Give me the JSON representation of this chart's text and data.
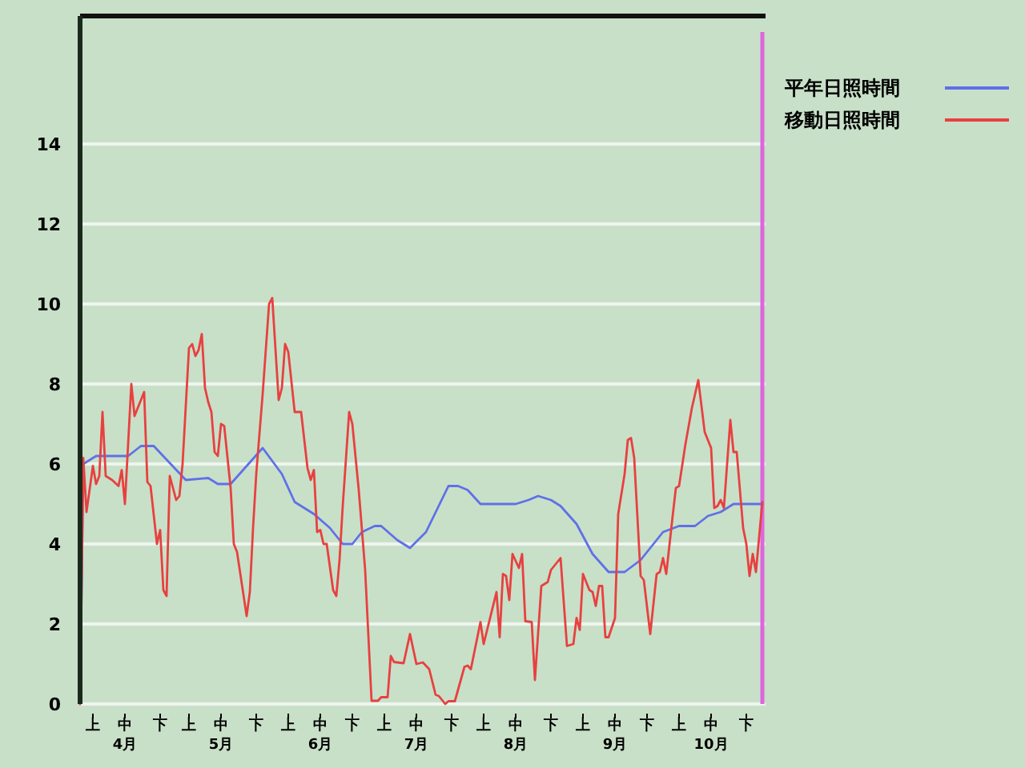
{
  "chart_data": {
    "type": "line",
    "xlim": [
      "--04-01",
      "--11-01"
    ],
    "ylim": [
      0,
      17.2
    ],
    "xticks": [
      {
        "value": "--04-05",
        "label": "上"
      },
      {
        "value": "--04-15",
        "label": "中\n4月"
      },
      {
        "value": "--04-26",
        "label": "下"
      },
      {
        "value": "--05-05",
        "label": "上"
      },
      {
        "value": "--05-15",
        "label": "中\n5月"
      },
      {
        "value": "--05-26",
        "label": "下"
      },
      {
        "value": "--06-05",
        "label": "上"
      },
      {
        "value": "--06-15",
        "label": "中\n6月"
      },
      {
        "value": "--06-25",
        "label": "下"
      },
      {
        "value": "--07-05",
        "label": "上"
      },
      {
        "value": "--07-15",
        "label": "中\n7月"
      },
      {
        "value": "--07-26",
        "label": "下"
      },
      {
        "value": "--08-05",
        "label": "上"
      },
      {
        "value": "--08-15",
        "label": "中\n8月"
      },
      {
        "value": "--08-26",
        "label": "下"
      },
      {
        "value": "--09-05",
        "label": "上"
      },
      {
        "value": "--09-15",
        "label": "中\n9月"
      },
      {
        "value": "--09-25",
        "label": "下"
      },
      {
        "value": "--10-05",
        "label": "上"
      },
      {
        "value": "--10-15",
        "label": "中\n10月"
      },
      {
        "value": "--10-26",
        "label": "下"
      }
    ],
    "yticks": [
      0,
      2,
      4,
      6,
      8,
      10,
      12,
      14
    ],
    "grid": "y",
    "legend": "right",
    "ref_lines": [
      {
        "axis": "x",
        "value": "--10-31",
        "label": null,
        "color": "#dd66dd"
      }
    ],
    "series": [
      {
        "name": "平年日照時間",
        "color": "#6070e8",
        "x": [
          "--04-01",
          "--04-02",
          "--04-06",
          "--04-16",
          "--04-20",
          "--04-24",
          "--05-04",
          "--05-11",
          "--05-14",
          "--05-18",
          "--05-28",
          "--06-03",
          "--06-07",
          "--06-13",
          "--06-18",
          "--06-22",
          "--06-25",
          "--06-28",
          "--07-02",
          "--07-04",
          "--07-09",
          "--07-13",
          "--07-18",
          "--07-25",
          "--07-28",
          "--07-31",
          "--08-04",
          "--08-15",
          "--08-19",
          "--08-22",
          "--08-26",
          "--08-29",
          "--09-03",
          "--09-08",
          "--09-13",
          "--09-18",
          "--09-23",
          "--09-30",
          "--10-05",
          "--10-10",
          "--10-14",
          "--10-18",
          "--10-22",
          "--10-31"
        ],
        "values": [
          0,
          6.0,
          6.2,
          6.2,
          6.45,
          6.45,
          5.6,
          5.65,
          5.5,
          5.5,
          6.4,
          5.75,
          5.05,
          4.75,
          4.4,
          4.0,
          4.0,
          4.3,
          4.45,
          4.45,
          4.1,
          3.9,
          4.3,
          5.45,
          5.45,
          5.35,
          5.0,
          5.0,
          5.1,
          5.2,
          5.1,
          4.95,
          4.5,
          3.75,
          3.3,
          3.3,
          3.6,
          4.3,
          4.45,
          4.45,
          4.7,
          4.8,
          5.0,
          5.0
        ]
      },
      {
        "name": "移動日照時間",
        "color": "#e84040",
        "x": [
          "--04-01",
          "--04-02",
          "--04-03",
          "--04-05",
          "--04-06",
          "--04-07",
          "--04-08",
          "--04-09",
          "--04-11",
          "--04-13",
          "--04-14",
          "--04-15",
          "--04-17",
          "--04-18",
          "--04-21",
          "--04-22",
          "--04-23",
          "--04-25",
          "--04-26",
          "--04-27",
          "--04-28",
          "--04-29",
          "--05-01",
          "--05-02",
          "--05-03",
          "--05-05",
          "--05-06",
          "--05-07",
          "--05-08",
          "--05-09",
          "--05-10",
          "--05-11",
          "--05-12",
          "--05-13",
          "--05-14",
          "--05-15",
          "--05-16",
          "--05-18",
          "--05-19",
          "--05-20",
          "--05-23",
          "--05-24",
          "--05-25",
          "--05-26",
          "--05-28",
          "--05-30",
          "--05-31",
          "--06-02",
          "--06-03",
          "--06-04",
          "--06-05",
          "--06-07",
          "--06-09",
          "--06-11",
          "--06-12",
          "--06-13",
          "--06-14",
          "--06-15",
          "--06-16",
          "--06-17",
          "--06-19",
          "--06-20",
          "--06-21",
          "--06-22",
          "--06-24",
          "--06-25",
          "--06-27",
          "--06-29",
          "--07-01",
          "--07-03",
          "--07-04",
          "--07-06",
          "--07-07",
          "--07-08",
          "--07-11",
          "--07-13",
          "--07-15",
          "--07-17",
          "--07-19",
          "--07-21",
          "--07-22",
          "--07-24",
          "--07-25",
          "--07-27",
          "--07-30",
          "--07-31",
          "--08-01",
          "--08-04",
          "--08-05",
          "--08-09",
          "--08-10",
          "--08-11",
          "--08-12",
          "--08-13",
          "--08-14",
          "--08-16",
          "--08-17",
          "--08-18",
          "--08-20",
          "--08-21",
          "--08-23",
          "--08-25",
          "--08-26",
          "--08-29",
          "--08-31",
          "--09-02",
          "--09-03",
          "--09-04",
          "--09-05",
          "--09-07",
          "--09-08",
          "--09-09",
          "--09-10",
          "--09-11",
          "--09-12",
          "--09-13",
          "--09-15",
          "--09-16",
          "--09-18",
          "--09-19",
          "--09-20",
          "--09-21",
          "--09-23",
          "--09-24",
          "--09-26",
          "--09-28",
          "--09-29",
          "--09-30",
          "--10-01",
          "--10-03",
          "--10-04",
          "--10-05",
          "--10-07",
          "--10-09",
          "--10-11",
          "--10-13",
          "--10-15",
          "--10-16",
          "--10-17",
          "--10-18",
          "--10-19",
          "--10-21",
          "--10-22",
          "--10-23",
          "--10-25",
          "--10-26",
          "--10-27",
          "--10-28",
          "--10-29",
          "--10-31"
        ],
        "values": [
          0,
          6.15,
          4.8,
          5.95,
          5.5,
          5.7,
          7.3,
          5.7,
          5.6,
          5.45,
          5.85,
          5.0,
          8.0,
          7.2,
          7.8,
          5.55,
          5.45,
          4.0,
          4.35,
          2.85,
          2.7,
          5.7,
          5.1,
          5.2,
          6.0,
          8.9,
          9.0,
          8.7,
          8.85,
          9.25,
          7.9,
          7.55,
          7.3,
          6.3,
          6.2,
          7.0,
          6.95,
          5.4,
          4.0,
          3.8,
          2.2,
          2.8,
          4.4,
          5.75,
          7.75,
          10.0,
          10.15,
          7.6,
          7.9,
          9.0,
          8.8,
          7.3,
          7.3,
          5.9,
          5.6,
          5.85,
          4.3,
          4.35,
          4.0,
          4.0,
          2.85,
          2.7,
          3.6,
          4.95,
          7.3,
          7.0,
          5.35,
          3.35,
          0.08,
          0.08,
          0.17,
          0.17,
          1.2,
          1.05,
          1.02,
          1.75,
          1.0,
          1.04,
          0.87,
          0.23,
          0.2,
          0.0,
          0.07,
          0.07,
          0.93,
          0.96,
          0.87,
          2.05,
          1.5,
          2.8,
          1.67,
          3.25,
          3.2,
          2.6,
          3.75,
          3.4,
          3.75,
          2.07,
          2.05,
          0.6,
          2.95,
          3.05,
          3.35,
          3.65,
          1.45,
          1.5,
          2.15,
          1.85,
          3.25,
          2.85,
          2.8,
          2.45,
          2.95,
          2.95,
          1.67,
          1.67,
          2.15,
          4.75,
          5.75,
          6.6,
          6.65,
          6.15,
          3.2,
          3.1,
          1.75,
          3.25,
          3.3,
          3.65,
          3.25,
          4.7,
          5.4,
          5.45,
          6.5,
          7.4,
          8.1,
          6.8,
          6.4,
          4.9,
          4.95,
          5.1,
          4.9,
          7.1,
          6.3,
          6.3,
          4.4,
          4.0,
          3.2,
          3.75,
          3.3,
          5.05
        ]
      }
    ]
  }
}
